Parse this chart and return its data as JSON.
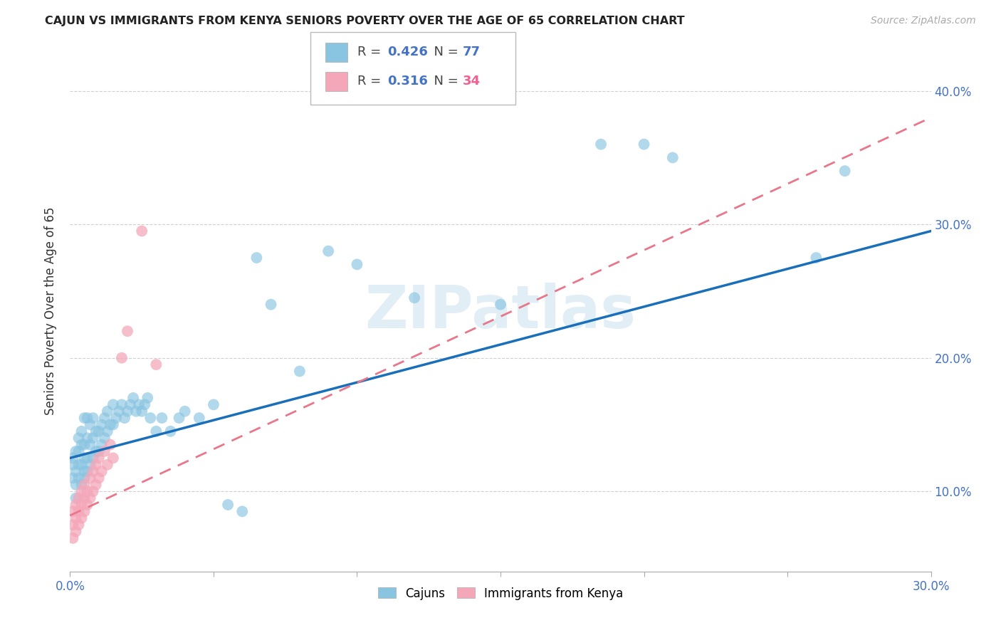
{
  "title": "CAJUN VS IMMIGRANTS FROM KENYA SENIORS POVERTY OVER THE AGE OF 65 CORRELATION CHART",
  "source": "Source: ZipAtlas.com",
  "ylabel": "Seniors Poverty Over the Age of 65",
  "xlim": [
    0.0,
    0.3
  ],
  "ylim": [
    0.04,
    0.43
  ],
  "yticks": [
    0.1,
    0.2,
    0.3,
    0.4
  ],
  "grid_color": "#d0d0d0",
  "background_color": "#ffffff",
  "cajun_color": "#89c4e1",
  "kenya_color": "#f4a7b9",
  "cajun_line_color": "#1a6fba",
  "kenya_line_color": "#e8778a",
  "R_cajun": 0.426,
  "N_cajun": 77,
  "R_kenya": 0.316,
  "N_kenya": 34,
  "watermark": "ZIPatlas",
  "cajun_label": "Cajuns",
  "kenya_label": "Immigrants from Kenya",
  "cajun_x": [
    0.001,
    0.001,
    0.001,
    0.002,
    0.002,
    0.002,
    0.002,
    0.003,
    0.003,
    0.003,
    0.003,
    0.004,
    0.004,
    0.004,
    0.004,
    0.005,
    0.005,
    0.005,
    0.005,
    0.005,
    0.006,
    0.006,
    0.006,
    0.006,
    0.007,
    0.007,
    0.007,
    0.008,
    0.008,
    0.008,
    0.009,
    0.009,
    0.01,
    0.01,
    0.011,
    0.011,
    0.012,
    0.012,
    0.013,
    0.013,
    0.014,
    0.015,
    0.015,
    0.016,
    0.017,
    0.018,
    0.019,
    0.02,
    0.021,
    0.022,
    0.023,
    0.024,
    0.025,
    0.026,
    0.027,
    0.028,
    0.03,
    0.032,
    0.035,
    0.038,
    0.04,
    0.045,
    0.05,
    0.055,
    0.06,
    0.065,
    0.07,
    0.08,
    0.09,
    0.1,
    0.12,
    0.15,
    0.185,
    0.2,
    0.21,
    0.26,
    0.27
  ],
  "cajun_y": [
    0.11,
    0.12,
    0.125,
    0.095,
    0.105,
    0.115,
    0.13,
    0.11,
    0.12,
    0.13,
    0.14,
    0.105,
    0.12,
    0.135,
    0.145,
    0.11,
    0.115,
    0.125,
    0.135,
    0.155,
    0.115,
    0.125,
    0.14,
    0.155,
    0.12,
    0.135,
    0.15,
    0.125,
    0.14,
    0.155,
    0.13,
    0.145,
    0.13,
    0.145,
    0.135,
    0.15,
    0.14,
    0.155,
    0.145,
    0.16,
    0.15,
    0.15,
    0.165,
    0.155,
    0.16,
    0.165,
    0.155,
    0.16,
    0.165,
    0.17,
    0.16,
    0.165,
    0.16,
    0.165,
    0.17,
    0.155,
    0.145,
    0.155,
    0.145,
    0.155,
    0.16,
    0.155,
    0.165,
    0.09,
    0.085,
    0.275,
    0.24,
    0.19,
    0.28,
    0.27,
    0.245,
    0.24,
    0.36,
    0.36,
    0.35,
    0.275,
    0.34
  ],
  "kenya_x": [
    0.001,
    0.001,
    0.001,
    0.002,
    0.002,
    0.002,
    0.003,
    0.003,
    0.003,
    0.004,
    0.004,
    0.004,
    0.005,
    0.005,
    0.005,
    0.006,
    0.006,
    0.007,
    0.007,
    0.008,
    0.008,
    0.009,
    0.009,
    0.01,
    0.01,
    0.011,
    0.012,
    0.013,
    0.014,
    0.015,
    0.018,
    0.02,
    0.025,
    0.03
  ],
  "kenya_y": [
    0.065,
    0.075,
    0.085,
    0.07,
    0.08,
    0.09,
    0.075,
    0.085,
    0.095,
    0.08,
    0.09,
    0.1,
    0.085,
    0.095,
    0.105,
    0.09,
    0.1,
    0.095,
    0.11,
    0.1,
    0.115,
    0.105,
    0.12,
    0.11,
    0.125,
    0.115,
    0.13,
    0.12,
    0.135,
    0.125,
    0.2,
    0.22,
    0.295,
    0.195
  ],
  "cajun_line_x0": 0.0,
  "cajun_line_y0": 0.125,
  "cajun_line_x1": 0.3,
  "cajun_line_y1": 0.295,
  "kenya_line_x0": 0.0,
  "kenya_line_y0": 0.082,
  "kenya_line_x1": 0.3,
  "kenya_line_y1": 0.38
}
